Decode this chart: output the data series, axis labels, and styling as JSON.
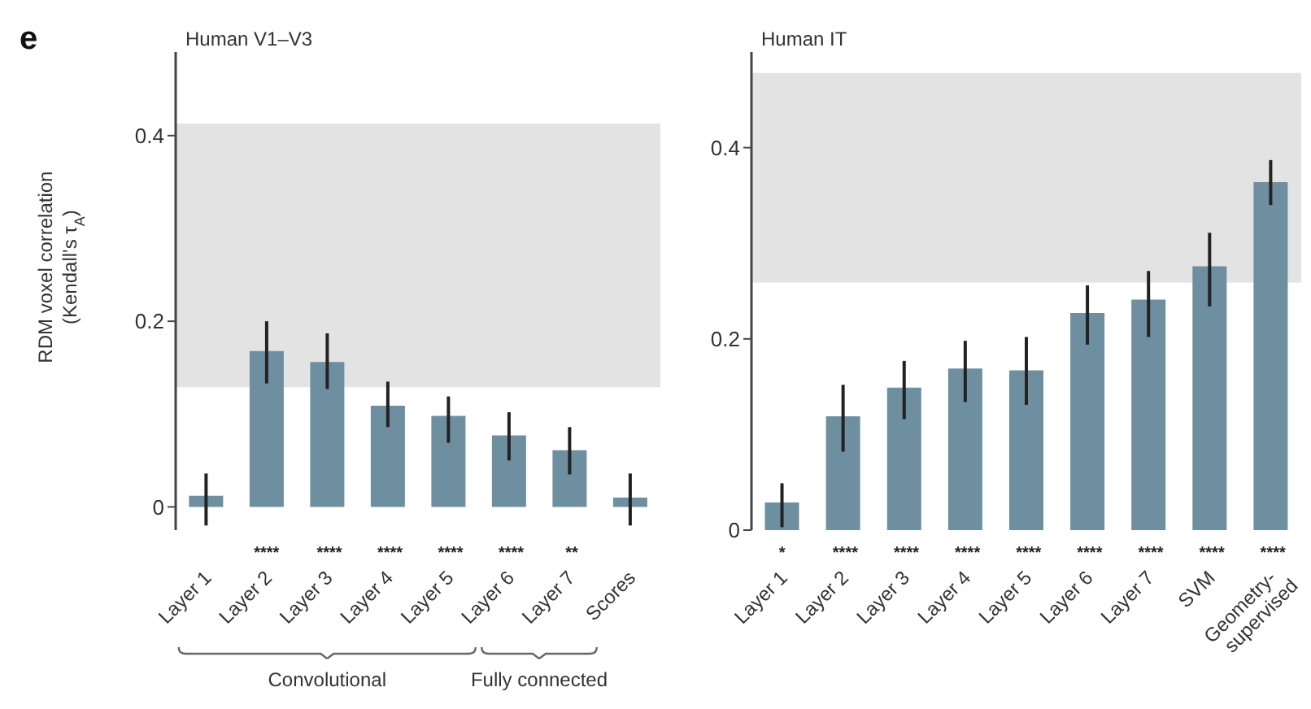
{
  "chart_data": [
    {
      "type": "bar",
      "title": "Human V1–V3",
      "ylabel": "RDM voxel correlation (Kendall's τ$_{A}$)",
      "categories": [
        "Layer 1",
        "Layer 2",
        "Layer 3",
        "Layer 4",
        "Layer 5",
        "Layer 6",
        "Layer 7",
        "Scores"
      ],
      "values": [
        0.012,
        0.168,
        0.156,
        0.109,
        0.098,
        0.077,
        0.061,
        0.01
      ],
      "errors": [
        [
          -0.02,
          0.036
        ],
        [
          0.133,
          0.2
        ],
        [
          0.127,
          0.187
        ],
        [
          0.086,
          0.135
        ],
        [
          0.069,
          0.119
        ],
        [
          0.05,
          0.102
        ],
        [
          0.035,
          0.086
        ],
        [
          -0.02,
          0.036
        ]
      ],
      "color": "#6e8fa0",
      "ylim": [
        -0.025,
        0.49
      ],
      "yticks": [
        0,
        0.2,
        0.4
      ],
      "bands": [
        {
          "axis": "y",
          "from": 0.129,
          "to": 0.413,
          "color": "#e3e3e3"
        }
      ],
      "annotations": [
        "e",
        "Convolutional",
        "Fully connected",
        "**** **** **** **** **** **"
      ]
    },
    {
      "type": "bar",
      "title": "Human IT",
      "categories": [
        "Layer 1",
        "Layer 2",
        "Layer 3",
        "Layer 4",
        "Layer 5",
        "Layer 6",
        "Layer 7",
        "SVM",
        "Geometry-supervised"
      ],
      "values": [
        0.029,
        0.119,
        0.149,
        0.169,
        0.167,
        0.227,
        0.241,
        0.276,
        0.364
      ],
      "errors": [
        [
          0.003,
          0.049
        ],
        [
          0.082,
          0.152
        ],
        [
          0.116,
          0.177
        ],
        [
          0.134,
          0.198
        ],
        [
          0.131,
          0.202
        ],
        [
          0.194,
          0.256
        ],
        [
          0.202,
          0.271
        ],
        [
          0.234,
          0.311
        ],
        [
          0.34,
          0.387
        ]
      ],
      "color": "#6e8fa0",
      "ylim": [
        0,
        0.5
      ],
      "yticks": [
        0,
        0.2,
        0.4
      ],
      "bands": [
        {
          "axis": "y",
          "from": 0.259,
          "to": 0.478,
          "color": "#e3e3e3"
        }
      ],
      "annotations": [
        "* **** **** **** **** **** **** **** ****"
      ]
    }
  ]
}
